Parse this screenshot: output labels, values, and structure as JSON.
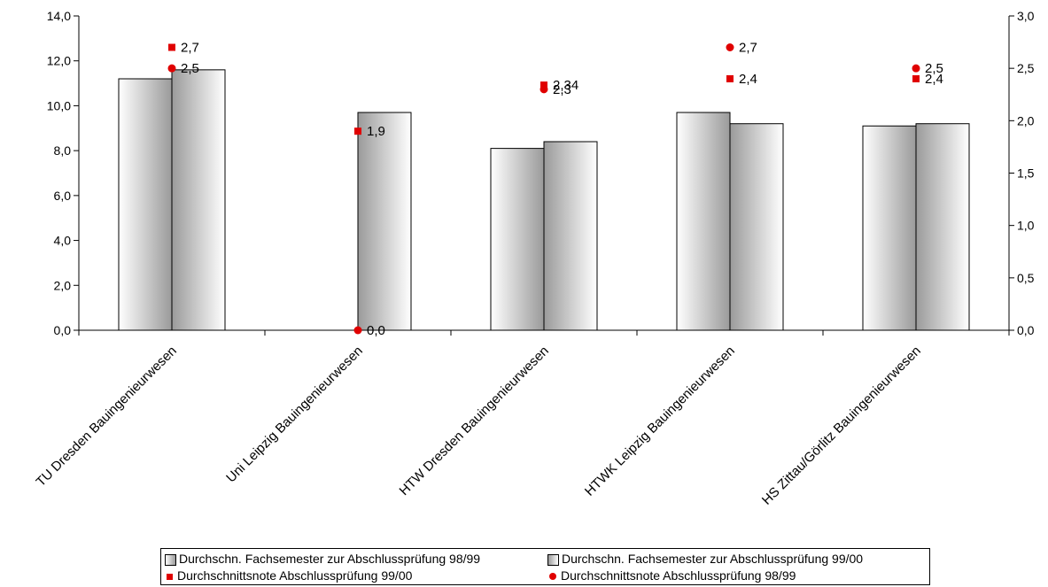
{
  "chart_data": {
    "type": "bar",
    "categories": [
      "TU Dresden Bauingenieurwesen",
      "Uni Leipzig Bauingenieurwesen",
      "HTW Dresden Bauingenieurwesen",
      "HTWK Leipzig Bauingenieurwesen",
      "HS Zittau/Görlitz Bauingenieurwesen"
    ],
    "series": [
      {
        "name": "Durchschn. Fachsemester zur Abschlussprüfung 98/99",
        "axis": "left",
        "type": "bar",
        "values": [
          11.2,
          null,
          8.1,
          9.7,
          9.1
        ]
      },
      {
        "name": "Durchschn. Fachsemester zur Abschlussprüfung 99/00",
        "axis": "left",
        "type": "bar",
        "values": [
          11.6,
          9.7,
          8.4,
          9.2,
          9.2
        ]
      },
      {
        "name": "Durchschnittsnote Abschlussprüfung 99/00",
        "axis": "right",
        "type": "scatter",
        "marker": "square",
        "values": [
          2.7,
          1.9,
          2.34,
          2.4,
          2.4
        ],
        "labels": [
          "2,7",
          "1,9",
          "2,34",
          "2,4",
          "2,4"
        ]
      },
      {
        "name": "Durchschnittsnote Abschlussprüfung 98/99",
        "axis": "right",
        "type": "scatter",
        "marker": "circle",
        "values": [
          2.5,
          0.0,
          2.3,
          2.7,
          2.5
        ],
        "labels": [
          "2,5",
          "0,0",
          "2,3",
          "2,7",
          "2,5"
        ]
      }
    ],
    "y_left": {
      "min": 0,
      "max": 14,
      "step": 2,
      "ticks": [
        "0,0",
        "2,0",
        "4,0",
        "6,0",
        "8,0",
        "10,0",
        "12,0",
        "14,0"
      ]
    },
    "y_right": {
      "min": 0,
      "max": 3,
      "step": 0.5,
      "ticks": [
        "0,0",
        "0,5",
        "1,0",
        "1,5",
        "2,0",
        "2,5",
        "3,0"
      ]
    },
    "grid": false,
    "legend_position": "bottom",
    "colors": {
      "marker": "#e00000",
      "bar_dark": "#9a9a9a",
      "bar_light": "#ffffff",
      "axis": "#000000"
    }
  },
  "legend": [
    {
      "label": "Durchschn. Fachsemester zur Abschlussprüfung 98/99",
      "swatch": "bar-98-99"
    },
    {
      "label": "Durchschn. Fachsemester zur Abschlussprüfung 99/00",
      "swatch": "bar-99-00"
    },
    {
      "label": "Durchschnittsnote Abschlussprüfung 99/00",
      "swatch": "square-marker"
    },
    {
      "label": "Durchschnittsnote Abschlussprüfung 98/99",
      "swatch": "circle-marker"
    }
  ]
}
